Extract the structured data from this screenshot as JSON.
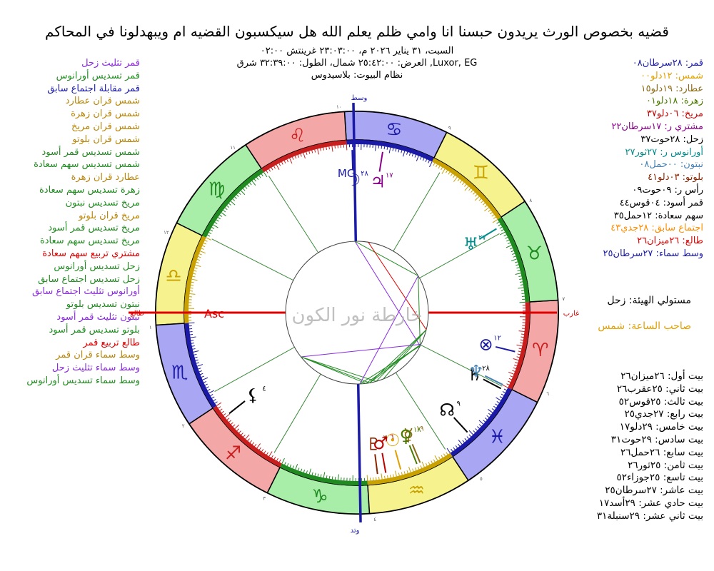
{
  "title": "قضيه بخصوص الورث يريدون حبسنا انا وامي ظلم يعلم الله  هل سيكسبون القضيه ام ويبهدلونا في المحاكم",
  "subtitle_line1": "السبت، ٣١ يناير ٢٠٢٦ م، ٢٣:٠٣:٠٠ غرينتش ٠٢:٠٠",
  "subtitle_line2": "Luxor, EG, العرض: ٢٥:٤٢:٠٠ شمال، الطول: ٣٢:٣٩:٠٠ شرق",
  "subtitle_line3": "نظام البيوت: بلاسيدوس",
  "watermark": "خارطة نور الكون",
  "aspects": [
    {
      "text": "قمر تثليث زحل",
      "color": "#8a2be2"
    },
    {
      "text": "قمر تسديس أورانوس",
      "color": "#228b22"
    },
    {
      "text": "قمر مقابلة اجتماع سابق",
      "color": "#1a1aa6"
    },
    {
      "text": "شمس قران عطارد",
      "color": "#b8860b"
    },
    {
      "text": "شمس قران زهرة",
      "color": "#b8860b"
    },
    {
      "text": "شمس قران مريخ",
      "color": "#b8860b"
    },
    {
      "text": "شمس قران بلوتو",
      "color": "#b8860b"
    },
    {
      "text": "شمس تسديس قمر أسود",
      "color": "#228b22"
    },
    {
      "text": "شمس تسديس سهم سعادة",
      "color": "#228b22"
    },
    {
      "text": "عطارد قران زهرة",
      "color": "#b8860b"
    },
    {
      "text": "زهرة تسديس سهم سعادة",
      "color": "#228b22"
    },
    {
      "text": "مريخ تسديس نبتون",
      "color": "#228b22"
    },
    {
      "text": "مريخ قران بلوتو",
      "color": "#b8860b"
    },
    {
      "text": "مريخ تسديس قمر أسود",
      "color": "#228b22"
    },
    {
      "text": "مريخ تسديس سهم سعادة",
      "color": "#228b22"
    },
    {
      "text": "مشتري تربيع سهم سعادة",
      "color": "#e00000"
    },
    {
      "text": "زحل تسديس أورانوس",
      "color": "#228b22"
    },
    {
      "text": "زحل تسديس اجتماع سابق",
      "color": "#228b22"
    },
    {
      "text": "أورانوس تثليث اجتماع سابق",
      "color": "#8a2be2"
    },
    {
      "text": "نبتون تسديس بلوتو",
      "color": "#228b22"
    },
    {
      "text": "نبتون تثليث قمر أسود",
      "color": "#8a2be2"
    },
    {
      "text": "بلوتو تسديس قمر أسود",
      "color": "#228b22"
    },
    {
      "text": "طالع تربيع قمر",
      "color": "#e00000"
    },
    {
      "text": "وسط سماء قران قمر",
      "color": "#b8860b"
    },
    {
      "text": "وسط سماء تثليث زحل",
      "color": "#8a2be2"
    },
    {
      "text": "وسط سماء تسديس أورانوس",
      "color": "#228b22"
    }
  ],
  "positions": [
    {
      "text": "قمر: ٢٨سرطان٠٨",
      "color": "#1a1aa6"
    },
    {
      "text": "شمس: ١٢دلو٠٠",
      "color": "#e0a000"
    },
    {
      "text": "عطارد: ١٩دلو١٥",
      "color": "#8b6914"
    },
    {
      "text": "زهرة: ١٨دلو٠١",
      "color": "#4b7a00"
    },
    {
      "text": "مريخ: ٠٦دلو٣٧",
      "color": "#c00000"
    },
    {
      "text": "مشتري ر: ١٧سرطان٢٢",
      "color": "#8a008a"
    },
    {
      "text": "زحل: ٢٨حوت٣٧",
      "color": "#000000"
    },
    {
      "text": "أورانوس ر: ٢٧ثور٢٧",
      "color": "#008b8b"
    },
    {
      "text": "نبتون: ٠٠حمل٠٨",
      "color": "#4682b4"
    },
    {
      "text": "بلوتو: ٠٣دلو٤١",
      "color": "#8b2500"
    },
    {
      "text": "رأس ر: ٠٩حوت٠٩",
      "color": "#000000"
    },
    {
      "text": "قمر أسود: ٠٤قوس٤٤",
      "color": "#000000"
    },
    {
      "text": "سهم سعادة: ١٢حمل٣٥",
      "color": "#000000"
    },
    {
      "text": "اجتماع سابق: ٢٨جدي٤٣",
      "color": "#ff8c00"
    },
    {
      "text": "طالع: ٢٦ميزان٢٦",
      "color": "#e00000"
    },
    {
      "text": "وسط سماء: ٢٧سرطان٢٥",
      "color": "#1a1aa6"
    }
  ],
  "lords": {
    "figure_lord": "مستولي الهيئة: زحل",
    "hour_lord": "صاحب الساعة: شمس"
  },
  "houses": [
    "بيت أول: ٢٦ميزان٢٦",
    "بيت ثاني: ٢٥عقرب٢٦",
    "بيت ثالث: ٢٥قوس٥٢",
    "بيت رابع: ٢٧جدي٢٥",
    "بيت خامس: ٢٩دلو١٧",
    "بيت سادس: ٢٩حوت٣١",
    "بيت سابع: ٢٦حمل٢٦",
    "بيت ثامن: ٢٥ثور٢٦",
    "بيت تاسع: ٢٥جوزاء٥٢",
    "بيت عاشر: ٢٧سرطان٢٥",
    "بيت حادي عشر: ٢٩أسد١٧",
    "بيت ثاني عشر: ٢٩سنبلة٣١"
  ],
  "axis_labels": {
    "mc": "وسط",
    "ic": "وتد",
    "asc": "طالع",
    "dsc": "غارب"
  },
  "chart": {
    "asc_deg": 206.44,
    "mc_deg": 117.42,
    "cusps": [
      206.44,
      235.43,
      265.87,
      297.42,
      329.28,
      359.52,
      26.44,
      55.43,
      85.87,
      117.42,
      149.28,
      179.52
    ],
    "house_numbers": [
      "١",
      "٢",
      "٣",
      "٤",
      "٥",
      "٦",
      "٧",
      "٨",
      "٩",
      "١٠",
      "١١",
      "١٢"
    ],
    "signs": [
      "♈",
      "♉",
      "♊",
      "♋",
      "♌",
      "♍",
      "♎",
      "♏",
      "♐",
      "♑",
      "♒",
      "♓"
    ],
    "sign_colors": [
      "#f4a7a7",
      "#a8eea8",
      "#f6f38e",
      "#a9a6f4",
      "#f4a7a7",
      "#a8eea8",
      "#f6f38e",
      "#a9a6f4",
      "#f4a7a7",
      "#a8eea8",
      "#f6f38e",
      "#a9a6f4"
    ],
    "sign_glyph_colors": [
      "#c81e1e",
      "#1f8a1f",
      "#c9a100",
      "#1a1aa6",
      "#c81e1e",
      "#1f8a1f",
      "#c9a100",
      "#1a1aa6",
      "#c81e1e",
      "#1f8a1f",
      "#c9a100",
      "#1a1aa6"
    ],
    "planets": [
      {
        "name": "moon",
        "glyph": "☽",
        "lon": 118.13,
        "color": "#1a1aa6",
        "deg": "٢٨"
      },
      {
        "name": "sun",
        "glyph": "☉",
        "lon": 312.0,
        "color": "#e0a000",
        "deg": "١٢"
      },
      {
        "name": "mercury",
        "glyph": "☿",
        "lon": 319.25,
        "color": "#8b6914",
        "deg": "١٩"
      },
      {
        "name": "venus",
        "glyph": "♀",
        "lon": 318.02,
        "color": "#4b7a00",
        "deg": "١٨"
      },
      {
        "name": "mars",
        "glyph": "♂",
        "lon": 306.62,
        "color": "#c00000",
        "deg": "٦"
      },
      {
        "name": "jupiter",
        "glyph": "♃",
        "lon": 107.37,
        "color": "#8a008a",
        "deg": "١٧"
      },
      {
        "name": "saturn",
        "glyph": "♄",
        "lon": 358.62,
        "color": "#000000",
        "deg": "٢٨"
      },
      {
        "name": "uranus",
        "glyph": "♅",
        "lon": 57.45,
        "color": "#008b8b",
        "deg": "٢٧"
      },
      {
        "name": "neptune",
        "glyph": "♆",
        "lon": 0.13,
        "color": "#4682b4",
        "deg": "٠"
      },
      {
        "name": "pluto",
        "glyph": "♇",
        "lon": 303.68,
        "color": "#8b2500",
        "deg": "٣"
      },
      {
        "name": "node",
        "glyph": "☊",
        "lon": 339.15,
        "color": "#000000",
        "deg": "٩"
      },
      {
        "name": "lilith",
        "glyph": "⚸",
        "lon": 244.73,
        "color": "#000000",
        "deg": "٤"
      },
      {
        "name": "fortune",
        "glyph": "⊗",
        "lon": 12.58,
        "color": "#1a1aa6",
        "deg": "١٢"
      }
    ],
    "aspect_lines": [
      {
        "a": 118.13,
        "b": 358.62,
        "color": "#8a2be2"
      },
      {
        "a": 118.13,
        "b": 57.45,
        "color": "#228b22"
      },
      {
        "a": 312.0,
        "b": 244.73,
        "color": "#228b22"
      },
      {
        "a": 312.0,
        "b": 12.58,
        "color": "#228b22"
      },
      {
        "a": 318.02,
        "b": 12.58,
        "color": "#228b22"
      },
      {
        "a": 306.62,
        "b": 0.13,
        "color": "#228b22"
      },
      {
        "a": 306.62,
        "b": 244.73,
        "color": "#228b22"
      },
      {
        "a": 306.62,
        "b": 12.58,
        "color": "#228b22"
      },
      {
        "a": 107.37,
        "b": 12.58,
        "color": "#e00000"
      },
      {
        "a": 358.62,
        "b": 57.45,
        "color": "#228b22"
      },
      {
        "a": 0.13,
        "b": 303.68,
        "color": "#228b22"
      },
      {
        "a": 0.13,
        "b": 244.73,
        "color": "#8a2be2"
      },
      {
        "a": 303.68,
        "b": 244.73,
        "color": "#228b22"
      },
      {
        "a": 57.45,
        "b": 298.72,
        "color": "#8a2be2"
      },
      {
        "a": 358.62,
        "b": 298.72,
        "color": "#228b22"
      }
    ]
  }
}
